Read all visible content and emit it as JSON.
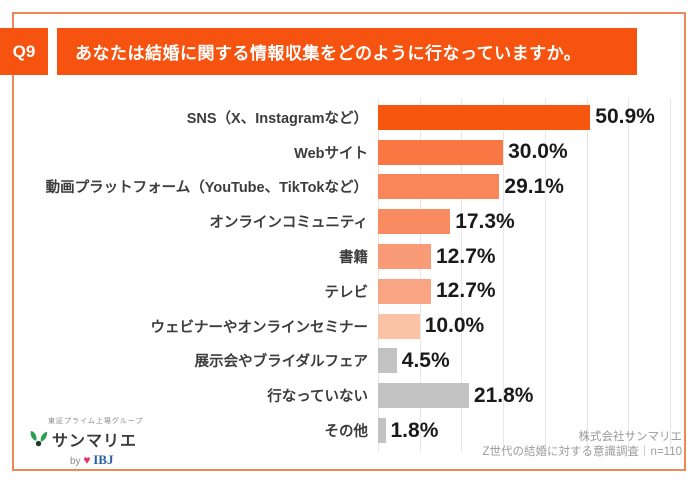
{
  "header": {
    "badge": "Q9",
    "title": "あなたは結婚に関する情報収集をどのように行なっていますか。"
  },
  "chart_data": {
    "type": "bar",
    "orientation": "horizontal",
    "unit": "%",
    "xlim": [
      0,
      70
    ],
    "gridline_step": 10,
    "grid": true,
    "categories": [
      "SNS（X、Instagramなど）",
      "Webサイト",
      "動画プラットフォーム（YouTube、TikTokなど）",
      "オンラインコミュニティ",
      "書籍",
      "テレビ",
      "ウェビナーやオンラインセミナー",
      "展示会やブライダルフェア",
      "行なっていない",
      "その他"
    ],
    "values": [
      50.9,
      30.0,
      29.1,
      17.3,
      12.7,
      12.7,
      10.0,
      4.5,
      21.8,
      1.8
    ],
    "rows": [
      {
        "label": "SNS（X、Instagramなど）",
        "value": 50.9,
        "value_label": "50.9%",
        "color": "#F7560E"
      },
      {
        "label": "Webサイト",
        "value": 30.0,
        "value_label": "30.0%",
        "color": "#F87743"
      },
      {
        "label": "動画プラットフォーム（YouTube、TikTokなど）",
        "value": 29.1,
        "value_label": "29.1%",
        "color": "#F88658"
      },
      {
        "label": "オンラインコミュニティ",
        "value": 17.3,
        "value_label": "17.3%",
        "color": "#F88C60"
      },
      {
        "label": "書籍",
        "value": 12.7,
        "value_label": "12.7%",
        "color": "#F99B76"
      },
      {
        "label": "テレビ",
        "value": 12.7,
        "value_label": "12.7%",
        "color": "#F9A584"
      },
      {
        "label": "ウェビナーやオンラインセミナー",
        "value": 10.0,
        "value_label": "10.0%",
        "color": "#FBC3A6"
      },
      {
        "label": "展示会やブライダルフェア",
        "value": 4.5,
        "value_label": "4.5%",
        "color": "#C2C2C2"
      },
      {
        "label": "行なっていない",
        "value": 21.8,
        "value_label": "21.8%",
        "color": "#C2C2C2"
      },
      {
        "label": "その他",
        "value": 1.8,
        "value_label": "1.8%",
        "color": "#C2C2C2"
      }
    ]
  },
  "footer": {
    "logo": {
      "group_text": "東証プライム上場グループ",
      "brand": "サンマリエ",
      "by_label": "by",
      "heart_icon": "♥",
      "partner": "IBJ"
    },
    "source_line1": "株式会社サンマリエ",
    "source_line2": "Z世代の結婚に対する意識調査｜n=110"
  },
  "colors": {
    "accent_orange": "#F5530F",
    "border_orange": "#F0875B",
    "gray_bar": "#C2C2C2",
    "gridline": "#E7E7E7",
    "ibj_blue": "#2B5DA7",
    "heart_pink": "#E0356B",
    "leaf_green": "#2E9E4F"
  }
}
